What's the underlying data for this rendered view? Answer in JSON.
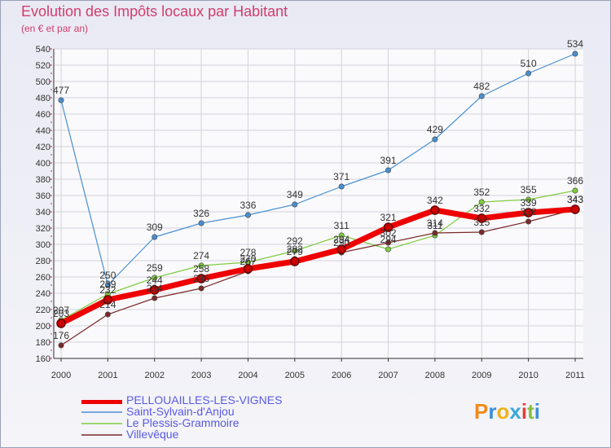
{
  "title": "Evolution des Impôts locaux par Habitant",
  "subtitle": "(en € et par an)",
  "brand": {
    "p": "P",
    "r": "r",
    "o": "o",
    "x": "x",
    "i": "i",
    "t": "t",
    "i2": "i"
  },
  "chart_data": {
    "type": "line",
    "categories": [
      "2000",
      "2001",
      "2002",
      "2003",
      "2004",
      "2005",
      "2006",
      "2007",
      "2008",
      "2009",
      "2010",
      "2011"
    ],
    "ylim": [
      160,
      540
    ],
    "ytick_step": 20,
    "grid": true,
    "series": [
      {
        "name": "PELLOUAILLES-LES-VIGNES",
        "color": "#ee0000",
        "values": [
          203,
          232,
          244,
          258,
          270,
          279,
          294,
          321,
          342,
          332,
          339,
          343
        ]
      },
      {
        "name": "Saint-Sylvain-d'Anjou",
        "color": "#4a8fd0",
        "values": [
          477,
          250,
          309,
          326,
          336,
          349,
          371,
          391,
          429,
          482,
          510,
          534
        ]
      },
      {
        "name": "Le Plessis-Grammoire",
        "color": "#80cc40",
        "values": [
          207,
          239,
          259,
          274,
          278,
          292,
          311,
          294,
          311,
          352,
          355,
          366
        ]
      },
      {
        "name": "Villevêque",
        "color": "#7a2a2a",
        "values": [
          176,
          214,
          234,
          246,
          267,
          282,
          290,
          302,
          314,
          315,
          328,
          343
        ]
      }
    ]
  }
}
